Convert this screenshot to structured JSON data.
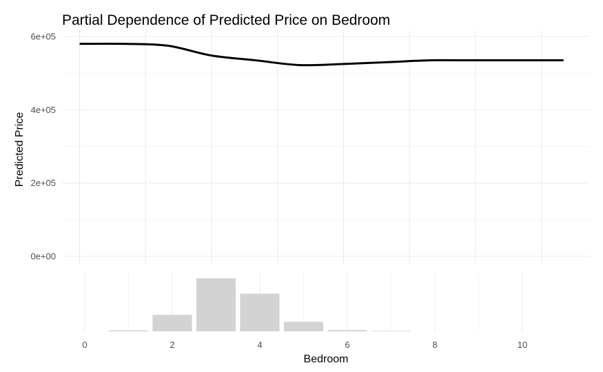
{
  "chart_data": [
    {
      "type": "line",
      "title": "Partial Dependence of Predicted Price on Bedroom",
      "xlabel": "",
      "ylabel": "Predicted Price",
      "xlim": [
        -0.4,
        11.6
      ],
      "ylim": [
        0,
        600000
      ],
      "y_ticks": [
        0,
        200000,
        400000,
        600000
      ],
      "y_tick_labels": [
        "0e+00",
        "2e+05",
        "4e+05",
        "6e+05"
      ],
      "grid": true,
      "series": [
        {
          "color": "#000000",
          "x": [
            0,
            1,
            2,
            3,
            4,
            5,
            6,
            7,
            8,
            9,
            10,
            11
          ],
          "y": [
            580000,
            580000,
            575000,
            548000,
            535000,
            522000,
            525000,
            530000,
            535000,
            535000,
            535000,
            535000
          ]
        }
      ]
    },
    {
      "type": "bar",
      "title": "",
      "xlabel": "Bedroom",
      "ylabel": "",
      "xlim": [
        -0.5,
        11.5
      ],
      "ylim": [
        0,
        1
      ],
      "x_ticks": [
        0,
        2,
        4,
        6,
        8,
        10
      ],
      "x_tick_labels": [
        "0",
        "2",
        "4",
        "6",
        "8",
        "10"
      ],
      "bar_color": "#d3d3d3",
      "grid": true,
      "categories": [
        1,
        2,
        3,
        4,
        5,
        6,
        7
      ],
      "values": [
        0.02,
        0.31,
        1.0,
        0.71,
        0.18,
        0.025,
        0.01
      ]
    }
  ]
}
